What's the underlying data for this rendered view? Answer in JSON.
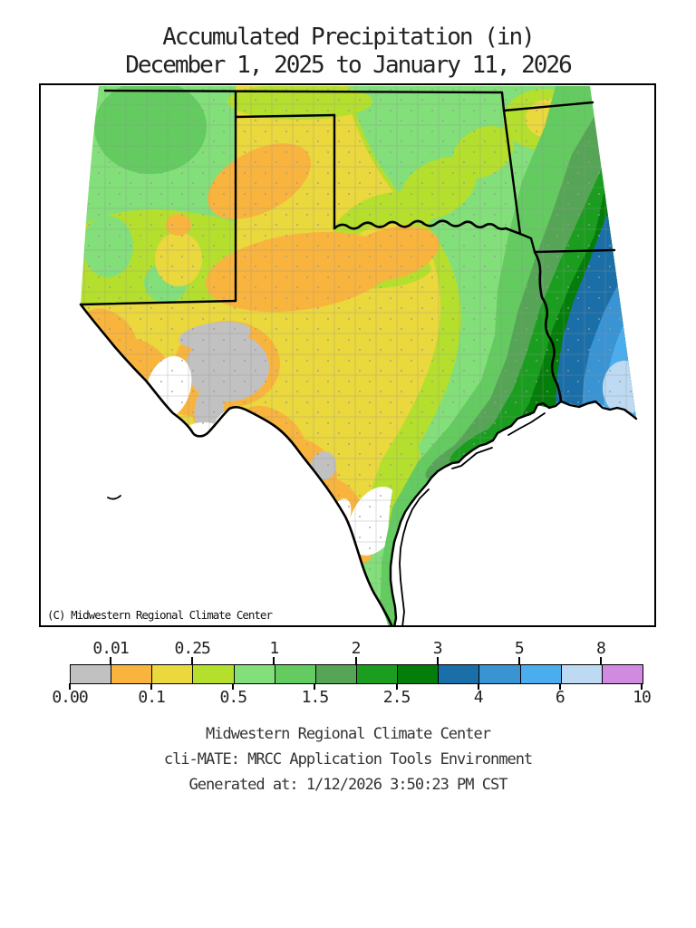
{
  "title": {
    "line1": "Accumulated Precipitation (in)",
    "line2": "December 1, 2025 to January 11, 2026"
  },
  "map": {
    "copyright": "(C) Midwestern Regional Climate Center",
    "region": "Texas / Oklahoma / New Mexico / Arkansas / Louisiana"
  },
  "legend": {
    "units": "inches",
    "classes": [
      {
        "range": "0.00-0.01",
        "color": "#c1c1c1"
      },
      {
        "range": "0.01-0.1",
        "color": "#f9b43e"
      },
      {
        "range": "0.1-0.25",
        "color": "#ead83c"
      },
      {
        "range": "0.25-0.5",
        "color": "#b5df2d"
      },
      {
        "range": "0.5-1",
        "color": "#82df79"
      },
      {
        "range": "1-1.5",
        "color": "#63cb5f"
      },
      {
        "range": "1.5-2",
        "color": "#56a556"
      },
      {
        "range": "2-2.5",
        "color": "#1b9e20"
      },
      {
        "range": "2.5-3",
        "color": "#047d0a"
      },
      {
        "range": "3-4",
        "color": "#1b6fa9"
      },
      {
        "range": "4-5",
        "color": "#3a93d3"
      },
      {
        "range": "5-6",
        "color": "#4aaeee"
      },
      {
        "range": "6-8",
        "color": "#bedaf2"
      },
      {
        "range": "8-10",
        "color": "#d08be0"
      }
    ],
    "top_labels": [
      {
        "boundary": 1,
        "text": "0.01"
      },
      {
        "boundary": 3,
        "text": "0.25"
      },
      {
        "boundary": 5,
        "text": "1"
      },
      {
        "boundary": 7,
        "text": "2"
      },
      {
        "boundary": 9,
        "text": "3"
      },
      {
        "boundary": 11,
        "text": "5"
      },
      {
        "boundary": 13,
        "text": "8"
      }
    ],
    "bottom_labels": [
      {
        "boundary": 0,
        "text": "0.00"
      },
      {
        "boundary": 2,
        "text": "0.1"
      },
      {
        "boundary": 4,
        "text": "0.5"
      },
      {
        "boundary": 6,
        "text": "1.5"
      },
      {
        "boundary": 8,
        "text": "2.5"
      },
      {
        "boundary": 10,
        "text": "4"
      },
      {
        "boundary": 12,
        "text": "6"
      },
      {
        "boundary": 14,
        "text": "10"
      }
    ]
  },
  "footer": {
    "line1": "Midwestern Regional Climate Center",
    "line2": "cli-MATE: MRCC Application Tools Environment",
    "line3": "Generated at: 1/12/2026 3:50:23 PM CST"
  }
}
